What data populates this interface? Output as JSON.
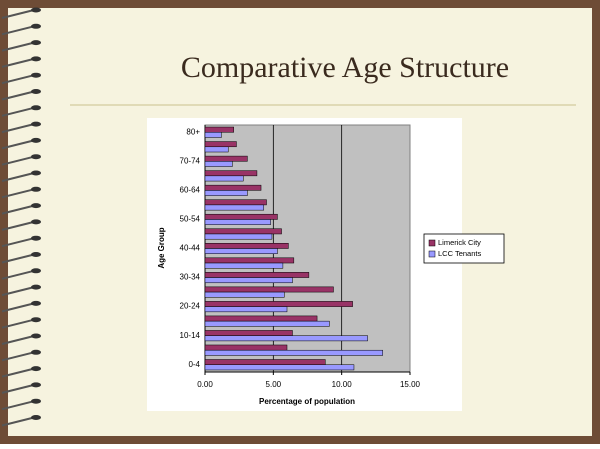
{
  "slide": {
    "title": "Comparative Age Structure"
  },
  "chart_data": {
    "type": "hbar",
    "ylabel": "Age Group",
    "xlabel": "Percentage of population",
    "categories": [
      "0-4",
      null,
      "10-14",
      null,
      "20-24",
      null,
      "30-34",
      null,
      "40-44",
      null,
      "50-54",
      null,
      "60-64",
      null,
      "70-74",
      null,
      "80+"
    ],
    "series": [
      {
        "name": "Limerick City",
        "color": "#993366",
        "values": [
          8.8,
          6.0,
          6.4,
          8.2,
          10.8,
          9.4,
          7.6,
          6.5,
          6.1,
          5.6,
          5.3,
          4.5,
          4.1,
          3.8,
          3.1,
          2.3,
          2.1
        ]
      },
      {
        "name": "LCC Tenants",
        "color": "#9999ff",
        "values": [
          10.9,
          13.0,
          11.9,
          9.1,
          6.0,
          5.8,
          6.4,
          5.7,
          5.3,
          4.9,
          4.8,
          4.3,
          3.1,
          2.8,
          2.0,
          1.7,
          1.2
        ]
      }
    ],
    "xlim": [
      0,
      15
    ],
    "xticks": [
      {
        "value": 0,
        "label": "0.00"
      },
      {
        "value": 5,
        "label": "5.00"
      },
      {
        "value": 10,
        "label": "10.00"
      },
      {
        "value": 15,
        "label": "15.00"
      }
    ],
    "grid": true,
    "legend": "right"
  }
}
